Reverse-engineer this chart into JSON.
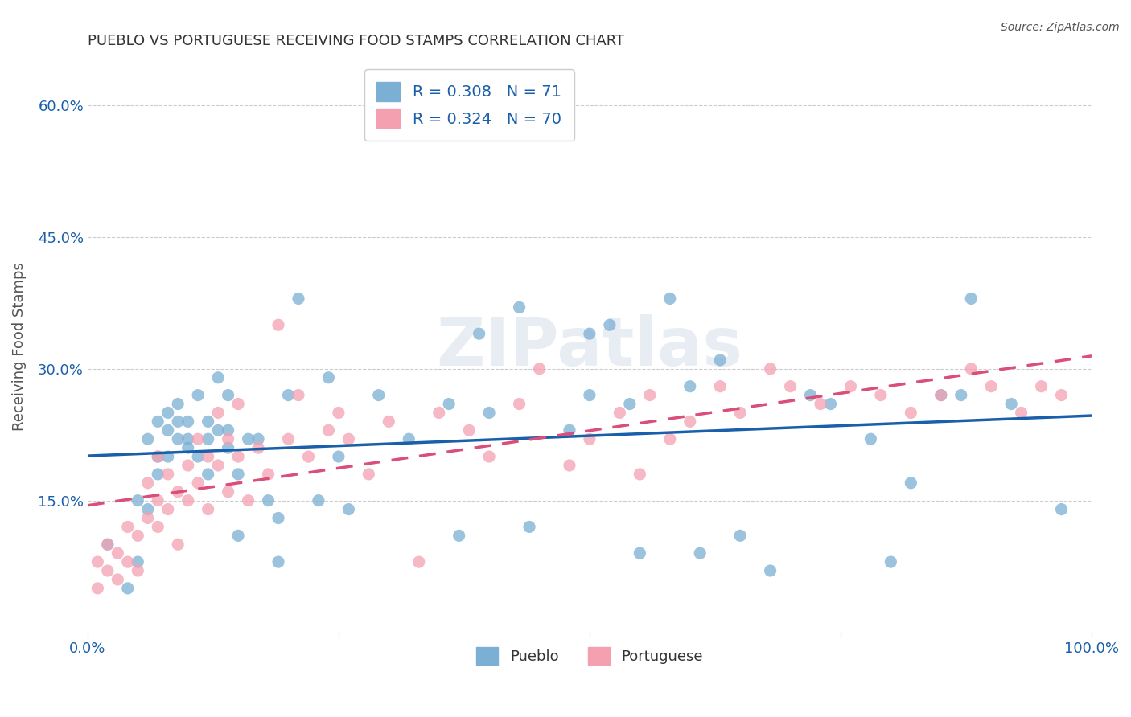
{
  "title": "PUEBLO VS PORTUGUESE RECEIVING FOOD STAMPS CORRELATION CHART",
  "source": "Source: ZipAtlas.com",
  "ylabel": "Receiving Food Stamps",
  "xlabel": "",
  "xlim": [
    0.0,
    1.0
  ],
  "ylim": [
    0.0,
    0.65
  ],
  "xticks": [
    0.0,
    0.25,
    0.5,
    0.75,
    1.0
  ],
  "xtick_labels": [
    "0.0%",
    "",
    "",
    "",
    "100.0%"
  ],
  "ytick_positions": [
    0.15,
    0.3,
    0.45,
    0.6
  ],
  "ytick_labels": [
    "15.0%",
    "30.0%",
    "45.0%",
    "60.0%"
  ],
  "pueblo_color": "#7bafd4",
  "portuguese_color": "#f4a0b0",
  "pueblo_line_color": "#1a5faa",
  "portuguese_line_color": "#d94f7a",
  "pueblo_R": 0.308,
  "pueblo_N": 71,
  "portuguese_R": 0.324,
  "portuguese_N": 70,
  "pueblo_x": [
    0.02,
    0.04,
    0.05,
    0.05,
    0.06,
    0.06,
    0.07,
    0.07,
    0.07,
    0.08,
    0.08,
    0.08,
    0.09,
    0.09,
    0.09,
    0.1,
    0.1,
    0.1,
    0.11,
    0.11,
    0.12,
    0.12,
    0.12,
    0.13,
    0.13,
    0.14,
    0.14,
    0.14,
    0.15,
    0.15,
    0.16,
    0.17,
    0.18,
    0.19,
    0.19,
    0.2,
    0.21,
    0.23,
    0.24,
    0.25,
    0.26,
    0.29,
    0.32,
    0.36,
    0.37,
    0.39,
    0.4,
    0.43,
    0.44,
    0.48,
    0.5,
    0.5,
    0.52,
    0.54,
    0.55,
    0.58,
    0.6,
    0.61,
    0.63,
    0.65,
    0.68,
    0.72,
    0.74,
    0.78,
    0.8,
    0.82,
    0.85,
    0.87,
    0.88,
    0.92,
    0.97
  ],
  "pueblo_y": [
    0.1,
    0.05,
    0.15,
    0.08,
    0.14,
    0.22,
    0.2,
    0.24,
    0.18,
    0.25,
    0.2,
    0.23,
    0.24,
    0.22,
    0.26,
    0.22,
    0.21,
    0.24,
    0.27,
    0.2,
    0.22,
    0.24,
    0.18,
    0.29,
    0.23,
    0.21,
    0.27,
    0.23,
    0.18,
    0.11,
    0.22,
    0.22,
    0.15,
    0.08,
    0.13,
    0.27,
    0.38,
    0.15,
    0.29,
    0.2,
    0.14,
    0.27,
    0.22,
    0.26,
    0.11,
    0.34,
    0.25,
    0.37,
    0.12,
    0.23,
    0.27,
    0.34,
    0.35,
    0.26,
    0.09,
    0.38,
    0.28,
    0.09,
    0.31,
    0.11,
    0.07,
    0.27,
    0.26,
    0.22,
    0.08,
    0.17,
    0.27,
    0.27,
    0.38,
    0.26,
    0.14
  ],
  "portuguese_x": [
    0.01,
    0.01,
    0.02,
    0.02,
    0.03,
    0.03,
    0.04,
    0.04,
    0.05,
    0.05,
    0.06,
    0.06,
    0.07,
    0.07,
    0.07,
    0.08,
    0.08,
    0.09,
    0.09,
    0.1,
    0.1,
    0.11,
    0.11,
    0.12,
    0.12,
    0.13,
    0.13,
    0.14,
    0.14,
    0.15,
    0.15,
    0.16,
    0.17,
    0.18,
    0.19,
    0.2,
    0.21,
    0.22,
    0.24,
    0.25,
    0.26,
    0.28,
    0.3,
    0.33,
    0.35,
    0.38,
    0.4,
    0.43,
    0.45,
    0.48,
    0.5,
    0.53,
    0.55,
    0.56,
    0.58,
    0.6,
    0.63,
    0.65,
    0.68,
    0.7,
    0.73,
    0.76,
    0.79,
    0.82,
    0.85,
    0.88,
    0.9,
    0.93,
    0.95,
    0.97
  ],
  "portuguese_y": [
    0.05,
    0.08,
    0.07,
    0.1,
    0.06,
    0.09,
    0.08,
    0.12,
    0.07,
    0.11,
    0.13,
    0.17,
    0.15,
    0.2,
    0.12,
    0.18,
    0.14,
    0.16,
    0.1,
    0.19,
    0.15,
    0.22,
    0.17,
    0.2,
    0.14,
    0.25,
    0.19,
    0.22,
    0.16,
    0.26,
    0.2,
    0.15,
    0.21,
    0.18,
    0.35,
    0.22,
    0.27,
    0.2,
    0.23,
    0.25,
    0.22,
    0.18,
    0.24,
    0.08,
    0.25,
    0.23,
    0.2,
    0.26,
    0.3,
    0.19,
    0.22,
    0.25,
    0.18,
    0.27,
    0.22,
    0.24,
    0.28,
    0.25,
    0.3,
    0.28,
    0.26,
    0.28,
    0.27,
    0.25,
    0.27,
    0.3,
    0.28,
    0.25,
    0.28,
    0.27
  ],
  "background_color": "#ffffff",
  "grid_color": "#cccccc",
  "title_color": "#333333",
  "legend_text_color": "#1a5faa",
  "watermark_text": "ZIPatlas",
  "watermark_color": "#d0dde8",
  "watermark_alpha": 0.5
}
